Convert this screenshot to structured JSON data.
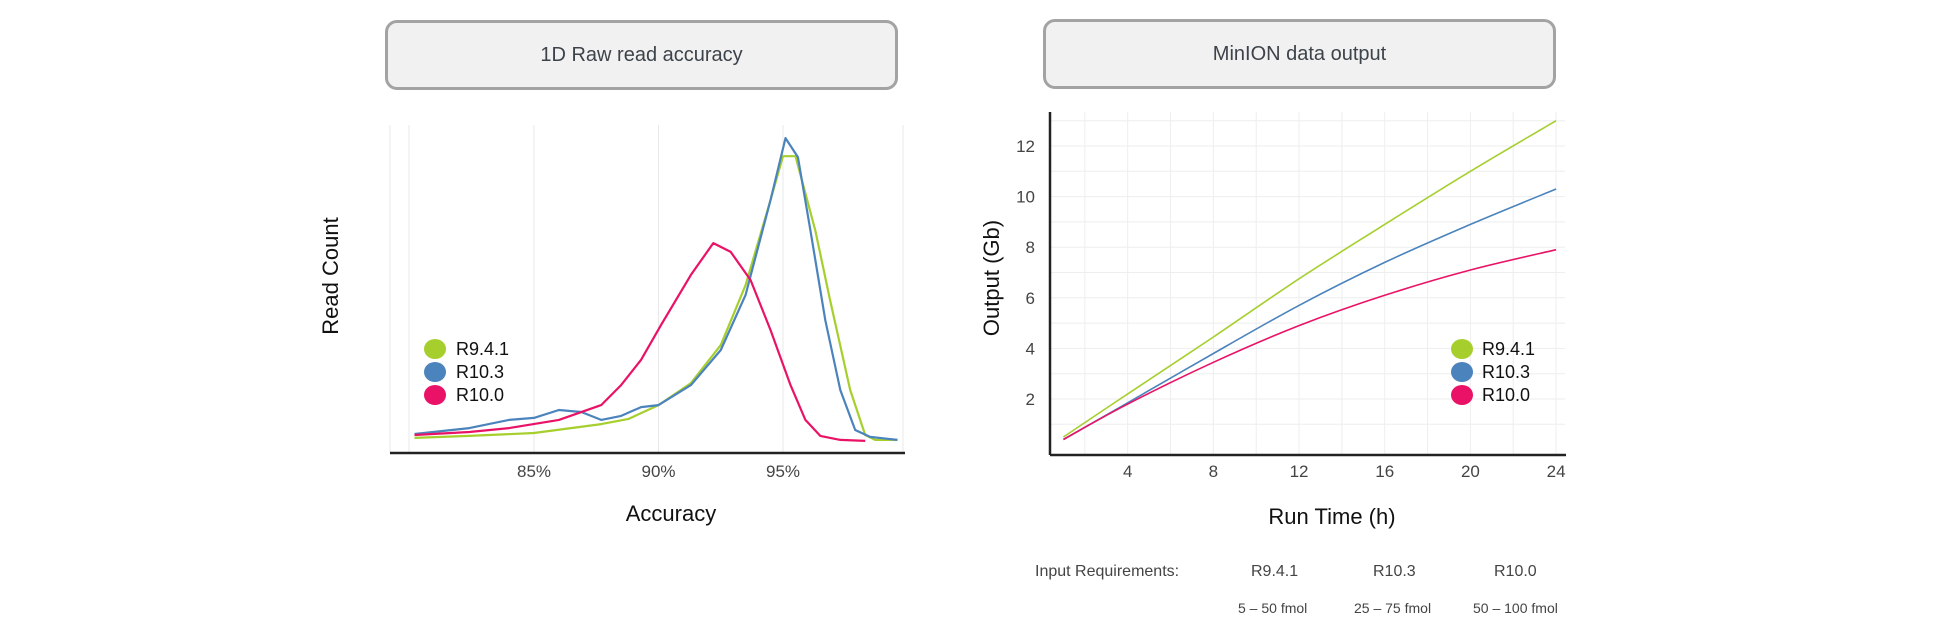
{
  "colors": {
    "R9.4.1": "#a6cf2e",
    "R10.3": "#4b83bd",
    "R10.0": "#ea1266",
    "title_box_bg": "#f1f1f1",
    "title_box_border": "#a3a3a3",
    "axis": "#222222",
    "grid": "#ececec"
  },
  "chart_data": [
    {
      "type": "line",
      "title": "1D Raw read accuracy",
      "xlabel": "Accuracy",
      "ylabel": "Read Count",
      "x_ticks": [
        "85%",
        "90%",
        "95%"
      ],
      "x_tick_values": [
        85,
        90,
        95
      ],
      "xlim": [
        79.2,
        100.0
      ],
      "ylim": [
        0,
        100
      ],
      "y_tick_labels_shown": false,
      "grid": "vertical",
      "legend": {
        "placement": "left-middle",
        "entries": [
          "R9.4.1",
          "R10.3",
          "R10.0"
        ]
      },
      "series": [
        {
          "name": "R9.4.1",
          "x": [
            80.2,
            82.4,
            85.0,
            87.7,
            88.8,
            90.0,
            91.3,
            92.5,
            93.5,
            94.5,
            95.0,
            95.5,
            96.3,
            96.9,
            97.7,
            98.3,
            98.7,
            99.6
          ],
          "y": [
            4.6,
            5.2,
            6.1,
            8.8,
            10.4,
            14.6,
            21.3,
            32.9,
            51.2,
            77.1,
            90.5,
            90.5,
            67.7,
            46.3,
            19.2,
            5.5,
            4.0,
            4.0
          ]
        },
        {
          "name": "R10.3",
          "x": [
            80.2,
            82.4,
            84.0,
            85.0,
            86.0,
            86.9,
            87.7,
            88.5,
            89.3,
            90.0,
            91.3,
            92.5,
            93.5,
            94.5,
            95.1,
            95.6,
            96.1,
            96.7,
            97.3,
            97.9,
            98.5,
            99.6
          ],
          "y": [
            5.8,
            7.6,
            10.1,
            10.7,
            13.1,
            12.5,
            10.1,
            11.3,
            14.0,
            14.6,
            20.7,
            31.4,
            48.2,
            77.1,
            96.0,
            90.2,
            67.9,
            40.5,
            19.2,
            7.0,
            4.9,
            4.0
          ]
        },
        {
          "name": "R10.0",
          "x": [
            80.2,
            82.4,
            84.0,
            86.0,
            87.7,
            88.5,
            89.3,
            90.1,
            91.3,
            92.2,
            92.9,
            93.7,
            94.5,
            95.3,
            95.9,
            96.5,
            97.3,
            98.3
          ],
          "y": [
            5.5,
            6.4,
            7.6,
            10.1,
            14.6,
            20.7,
            28.4,
            39.0,
            54.3,
            64.0,
            61.3,
            52.7,
            37.5,
            20.7,
            10.1,
            5.2,
            4.0,
            3.7
          ]
        }
      ]
    },
    {
      "type": "line",
      "title": "MinION data output",
      "xlabel": "Run Time (h)",
      "ylabel": "Output (Gb)",
      "x_ticks": [
        4,
        8,
        12,
        16,
        20,
        24
      ],
      "y_ticks": [
        2,
        4,
        6,
        8,
        10,
        12
      ],
      "xlim": [
        0,
        25
      ],
      "ylim": [
        0,
        13.5
      ],
      "grid": "both",
      "legend": {
        "placement": "right-lower",
        "entries": [
          "R9.4.1",
          "R10.3",
          "R10.0"
        ]
      },
      "series": [
        {
          "name": "R9.4.1",
          "x": [
            1,
            4,
            8,
            12,
            16,
            20,
            24
          ],
          "y": [
            0.5,
            2.2,
            4.45,
            6.75,
            8.9,
            11.0,
            13.0
          ]
        },
        {
          "name": "R10.3",
          "x": [
            1,
            4,
            8,
            12,
            16,
            20,
            24
          ],
          "y": [
            0.4,
            1.85,
            3.8,
            5.7,
            7.4,
            8.9,
            10.3
          ]
        },
        {
          "name": "R10.0",
          "x": [
            1,
            4,
            8,
            12,
            16,
            20,
            24
          ],
          "y": [
            0.4,
            1.8,
            3.45,
            4.9,
            6.1,
            7.1,
            7.9
          ]
        }
      ]
    }
  ],
  "input_requirements": {
    "label": "Input Requirements:",
    "columns": [
      {
        "name": "R9.4.1",
        "value": "5 – 50 fmol"
      },
      {
        "name": "R10.3",
        "value": "25 – 75 fmol"
      },
      {
        "name": "R10.0",
        "value": "50 – 100 fmol"
      }
    ]
  }
}
